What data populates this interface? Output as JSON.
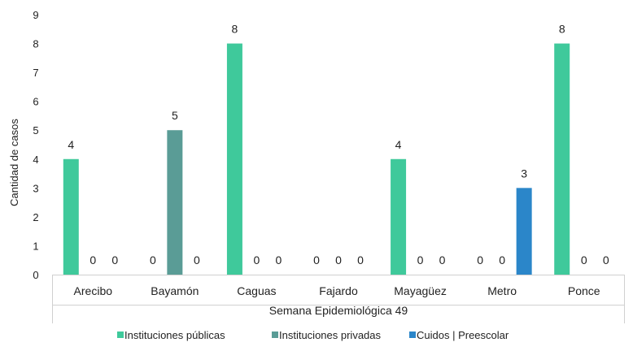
{
  "chart_data": {
    "type": "bar",
    "title": "",
    "ylabel": "Cantidad de casos",
    "group_label": "Semana Epidemiológica 49",
    "ylim": [
      0,
      9
    ],
    "yticks": [
      0,
      1,
      2,
      3,
      4,
      5,
      6,
      7,
      8,
      9
    ],
    "grid": false,
    "legend_position": "bottom",
    "categories": [
      "Arecibo",
      "Bayamón",
      "Caguas",
      "Fajardo",
      "Mayagüez",
      "Metro",
      "Ponce"
    ],
    "series": [
      {
        "name": "Instituciones públicas",
        "color": "#3fc99b",
        "values": [
          4,
          0,
          8,
          0,
          4,
          0,
          8
        ]
      },
      {
        "name": "Instituciones privadas",
        "color": "#5a9c96",
        "values": [
          0,
          5,
          0,
          0,
          0,
          0,
          0
        ]
      },
      {
        "name": "Cuidos | Preescolar",
        "color": "#2b86c9",
        "values": [
          0,
          0,
          0,
          0,
          0,
          3,
          0
        ]
      }
    ]
  }
}
